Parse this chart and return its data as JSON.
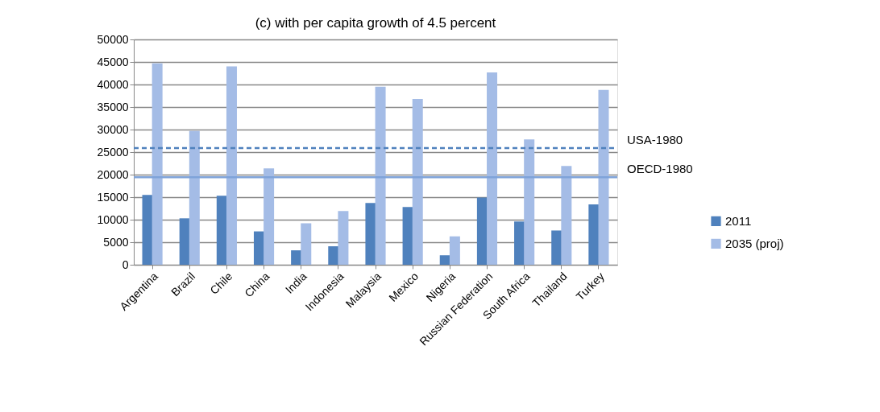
{
  "chart_data": {
    "type": "bar",
    "title": "(c) with per capita growth of 4.5 percent",
    "categories": [
      "Argentina",
      "Brazil",
      "Chile",
      "China",
      "India",
      "Indonesia",
      "Malaysia",
      "Mexico",
      "Nigeria",
      "Russian Federation",
      "South Africa",
      "Thailand",
      "Turkey"
    ],
    "series": [
      {
        "name": "2011",
        "color": "#4f81bd",
        "values": [
          15500,
          10300,
          15300,
          7400,
          3200,
          4100,
          13700,
          12800,
          2100,
          14900,
          9600,
          7600,
          13400
        ]
      },
      {
        "name": "2035 (proj)",
        "color": "#a4bce6",
        "values": [
          44700,
          29700,
          44000,
          21400,
          9200,
          11900,
          39500,
          36800,
          6300,
          42700,
          27800,
          21900,
          38800
        ]
      }
    ],
    "ylim": [
      0,
      50000
    ],
    "yticks": [
      0,
      5000,
      10000,
      15000,
      20000,
      25000,
      30000,
      35000,
      40000,
      45000,
      50000
    ],
    "grid": "y",
    "legend": "right",
    "ref_lines": [
      {
        "axis": "y",
        "value": 25900,
        "label": "USA-1980",
        "color": "#4f81bd",
        "line_style": "dashed"
      },
      {
        "axis": "y",
        "value": 19400,
        "label": "OECD-1980",
        "color": "#7fa3d9",
        "line_style": "solid"
      }
    ]
  }
}
